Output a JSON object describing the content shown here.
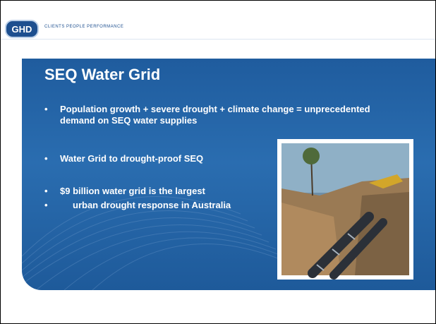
{
  "header": {
    "logo": "GHD",
    "tagline": "CLIENTS PEOPLE PERFORMANCE"
  },
  "slide": {
    "title": "SEQ Water Grid",
    "bullets": [
      "Population growth + severe drought + climate change = unprecedented demand on SEQ water supplies",
      "Water Grid to drought-proof SEQ",
      "$9 billion water grid is the largest",
      "urban drought response in Australia"
    ]
  }
}
